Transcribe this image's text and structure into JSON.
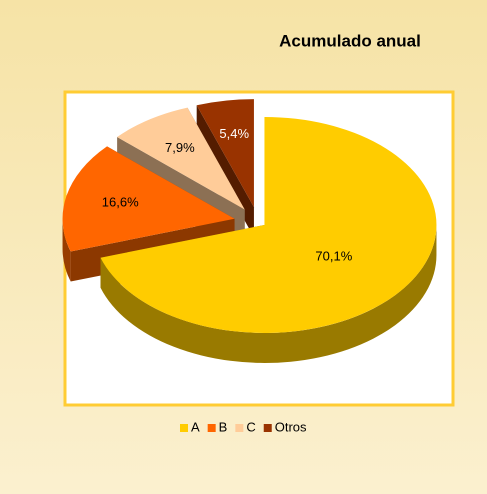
{
  "chart_data": {
    "type": "pie",
    "title": "Acumulado anual",
    "categories": [
      "A",
      "B",
      "C",
      "Otros"
    ],
    "values": [
      70.1,
      16.6,
      7.9,
      5.4
    ],
    "value_labels": [
      "70,1%",
      "16,6%",
      "7,9%",
      "5,4%"
    ],
    "colors": [
      "#ffcc00",
      "#ff6600",
      "#ffcc99",
      "#993300"
    ],
    "legend": "bottom"
  }
}
